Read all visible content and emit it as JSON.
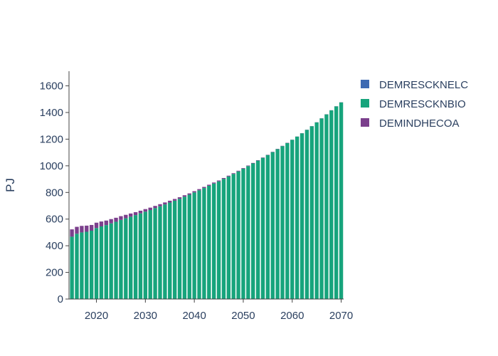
{
  "chart_data": {
    "type": "bar",
    "barmode": "stack",
    "title": "",
    "xlabel": "",
    "ylabel": "PJ",
    "x_start": 2015,
    "x_end": 2070,
    "xlim": [
      2014.4,
      2070.5
    ],
    "ylim": [
      0,
      1710
    ],
    "x_ticks": [
      2020,
      2030,
      2040,
      2050,
      2060,
      2070
    ],
    "y_ticks": [
      0,
      200,
      400,
      600,
      800,
      1000,
      1200,
      1400,
      1600
    ],
    "legend_position": "top-right",
    "grid": false,
    "series": [
      {
        "name": "DEMRESCKNELC",
        "color": "#3d6ab3",
        "values": [
          0,
          0,
          0,
          0,
          0,
          0,
          0,
          0,
          0,
          0,
          0,
          0,
          0,
          0,
          0,
          0,
          0,
          0,
          0,
          0,
          0,
          0,
          0,
          0,
          0,
          0,
          0,
          0,
          0,
          0,
          0,
          0,
          0,
          0,
          0,
          0,
          0,
          0,
          0,
          0,
          0,
          0,
          0,
          0,
          0,
          0,
          0,
          0,
          0,
          0,
          0,
          0,
          0,
          0,
          0,
          0
        ]
      },
      {
        "name": "DEMRESCKNBIO",
        "color": "#17a47c",
        "values": [
          468,
          490,
          500,
          505,
          513,
          533,
          545,
          555,
          568,
          580,
          594,
          606,
          618,
          630,
          643,
          656,
          668,
          682,
          696,
          710,
          724,
          738,
          752,
          768,
          783,
          800,
          816,
          833,
          850,
          867,
          883,
          902,
          920,
          939,
          958,
          978,
          998,
          1018,
          1039,
          1060,
          1081,
          1103,
          1125,
          1148,
          1171,
          1195,
          1219,
          1244,
          1270,
          1297,
          1326,
          1356,
          1386,
          1416,
          1446,
          1476
        ]
      },
      {
        "name": "DEMINDHECOA",
        "color": "#7b3f8c",
        "values": [
          55,
          52,
          49,
          46,
          43,
          40,
          37,
          34,
          32,
          30,
          28,
          26,
          24,
          22,
          20,
          19,
          18,
          17,
          16,
          15,
          14,
          13,
          12,
          11,
          10,
          9.5,
          9,
          8.5,
          8,
          7.5,
          7,
          6.5,
          6,
          5.5,
          5,
          4.5,
          4,
          3.5,
          3,
          2.5,
          2,
          2,
          2,
          2,
          2,
          1,
          1,
          1,
          1,
          1,
          1,
          1,
          1,
          1,
          1,
          1
        ]
      }
    ]
  }
}
